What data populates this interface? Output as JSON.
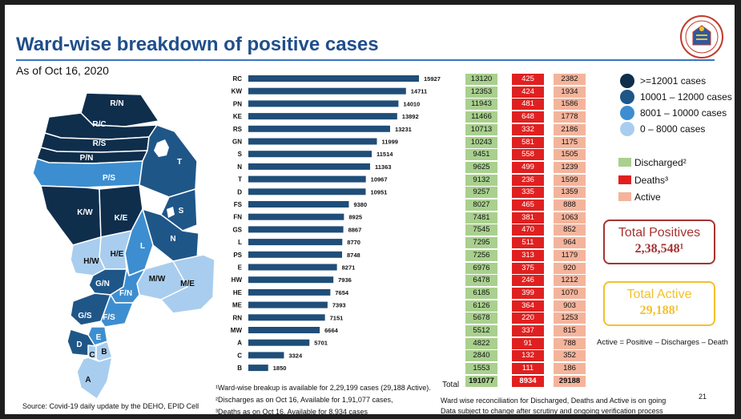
{
  "title": "Ward-wise breakdown of positive cases",
  "as_of": "As of Oct 16, 2020",
  "map_labels": [
    "R/N",
    "R/C",
    "R/S",
    "P/N",
    "P/S",
    "T",
    "K/W",
    "K/E",
    "H/E",
    "H/W",
    "L",
    "N",
    "S",
    "G/N",
    "F/N",
    "M/W",
    "M/E",
    "G/S",
    "F/S",
    "E",
    "D",
    "C",
    "B",
    "A"
  ],
  "legend": {
    "ranges": [
      {
        "label": ">=12001 cases",
        "color": "#0f2e4c"
      },
      {
        "label": "10001 – 12000 cases",
        "color": "#1f5688"
      },
      {
        "label": "8001 – 10000 cases",
        "color": "#3d8ed0"
      },
      {
        "label": "0 – 8000 cases",
        "color": "#a9cdee"
      }
    ],
    "discharged": "Discharged²",
    "deaths": "Deaths³",
    "active": "Active"
  },
  "colors": {
    "bar": "#1f4e79",
    "discharged": "#a9d08e",
    "deaths": "#e02020",
    "active": "#f4b49c"
  },
  "chart_data": {
    "type": "bar",
    "orientation": "horizontal",
    "categories": [
      "RC",
      "KW",
      "PN",
      "KE",
      "RS",
      "GN",
      "S",
      "N",
      "T",
      "D",
      "FS",
      "FN",
      "GS",
      "L",
      "PS",
      "E",
      "HW",
      "HE",
      "ME",
      "RN",
      "MW",
      "A",
      "C",
      "B"
    ],
    "values": [
      15927,
      14711,
      14010,
      13892,
      13231,
      11999,
      11514,
      11363,
      10967,
      10951,
      9380,
      8925,
      8867,
      8770,
      8748,
      8271,
      7936,
      7654,
      7393,
      7151,
      6664,
      5701,
      3324,
      1850
    ],
    "xlim": [
      0,
      16000
    ]
  },
  "table": {
    "discharged": [
      "13120",
      "12353",
      "11943",
      "11466",
      "10713",
      "10243",
      "9451",
      "9625",
      "9132",
      "9257",
      "8027",
      "7481",
      "7545",
      "7295",
      "7256",
      "6976",
      "6478",
      "6185",
      "6126",
      "5678",
      "5512",
      "4822",
      "2840",
      "1553"
    ],
    "deaths": [
      "425",
      "424",
      "481",
      "648",
      "332",
      "581",
      "558",
      "499",
      "236",
      "335",
      "465",
      "381",
      "470",
      "511",
      "313",
      "375",
      "246",
      "399",
      "364",
      "220",
      "337",
      "91",
      "132",
      "111"
    ],
    "active": [
      "2382",
      "1934",
      "1586",
      "1778",
      "2186",
      "1175",
      "1505",
      "1239",
      "1599",
      "1359",
      "888",
      "1063",
      "852",
      "964",
      "1179",
      "920",
      "1212",
      "1070",
      "903",
      "1253",
      "815",
      "788",
      "352",
      "186"
    ],
    "total_label": "Total",
    "total_discharged": "191077",
    "total_deaths": "8934",
    "total_active": "29188"
  },
  "boxes": {
    "positives_label": "Total Positives",
    "positives_value": "2,38,548¹",
    "active_label": "Total Active",
    "active_value": "29,188¹"
  },
  "formula": "Active = Positive – Discharges – Death",
  "footnotes": {
    "f1": "¹Ward-wise breakup is available for 2,29,199 cases (29,188 Active).",
    "f2": "²Discharges as on Oct 16, Available for 1,91,077 cases,",
    "f3": "³Deaths as on Oct 16, Available for 8,934 cases",
    "reconcile1": "Ward wise reconciliation for Discharged, Deaths and Active is on going",
    "reconcile2": "Data subject to change after scrutiny and ongoing verification process"
  },
  "source": "Source: Covid-19 daily update by the DEHO, EPID Cell",
  "page_number": "21"
}
